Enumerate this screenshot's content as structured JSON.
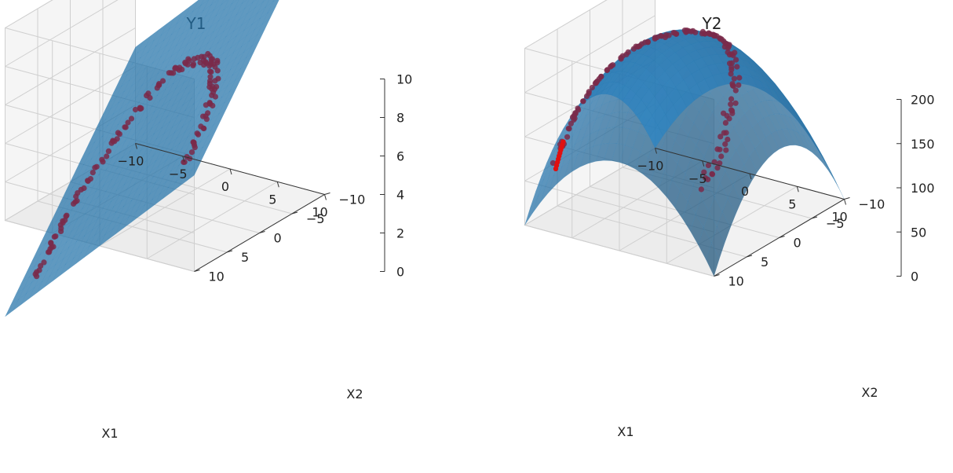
{
  "figure": {
    "colors": {
      "surface": "#1f77b4",
      "points": "#7a2a4a",
      "highlight": "#e01010",
      "pane": "#f2f2f2",
      "grid": "#cfcfcf",
      "axis": "#333333"
    }
  },
  "chart_data": [
    {
      "type": "3d-surface-scatter",
      "title": "Y1",
      "xlabel": "X1",
      "ylabel": "X2",
      "zlabel": "",
      "xlim": [
        -10,
        10
      ],
      "ylim": [
        -10,
        10
      ],
      "zlim": [
        0,
        10
      ],
      "x_ticks": [
        -10,
        -5,
        0,
        5,
        10
      ],
      "y_ticks": [
        -10,
        -5,
        0,
        5,
        10
      ],
      "z_ticks": [
        0,
        2,
        4,
        6,
        8,
        10
      ],
      "grid": true,
      "surface": {
        "form": "plane",
        "z": "0.5*(X1 - X2) + 5",
        "color": "#1f77b4",
        "alpha": 0.7
      },
      "points": {
        "color": "#7a2a4a",
        "label": "",
        "shape": "U-shaped curve in the X1-X2 plane lying on the surface",
        "path": [
          {
            "x1": -8,
            "x2": 8
          },
          {
            "x1": -8,
            "x2": 5
          },
          {
            "x1": -7.5,
            "x2": 2
          },
          {
            "x1": -6,
            "x2": -1
          },
          {
            "x1": -4,
            "x2": -3
          },
          {
            "x1": -1,
            "x2": -4
          },
          {
            "x1": 2,
            "x2": -3
          },
          {
            "x1": 4.5,
            "x2": -1
          },
          {
            "x1": 6.5,
            "x2": 2
          },
          {
            "x1": 7.5,
            "x2": 5
          },
          {
            "x1": 7.5,
            "x2": 8
          }
        ]
      }
    },
    {
      "type": "3d-surface-scatter",
      "title": "Y2",
      "xlabel": "X1",
      "ylabel": "X2",
      "zlabel": "",
      "xlim": [
        -10,
        10
      ],
      "ylim": [
        -10,
        10
      ],
      "zlim": [
        0,
        200
      ],
      "x_ticks": [
        -10,
        -5,
        0,
        5,
        10
      ],
      "y_ticks": [
        -10,
        -5,
        0,
        5,
        10
      ],
      "z_ticks": [
        0,
        50,
        100,
        150,
        200
      ],
      "grid": true,
      "surface": {
        "form": "paraboloid",
        "z": "200 - X1^2 - X2^2",
        "color": "#1f77b4",
        "alpha": 0.7
      },
      "points": {
        "color": "#7a2a4a",
        "highlight_color": "#e01010",
        "label": "",
        "shape": "U-shaped curve in the X1-X2 plane lying on the surface",
        "path": [
          {
            "x1": -8,
            "x2": 8
          },
          {
            "x1": -8,
            "x2": 5
          },
          {
            "x1": -7.5,
            "x2": 2
          },
          {
            "x1": -6,
            "x2": -1
          },
          {
            "x1": -4,
            "x2": -3
          },
          {
            "x1": -1,
            "x2": -4
          },
          {
            "x1": 2,
            "x2": -3
          },
          {
            "x1": 4.5,
            "x2": -1
          },
          {
            "x1": 6.5,
            "x2": 2
          },
          {
            "x1": 7.5,
            "x2": 5
          },
          {
            "x1": 7.5,
            "x2": 8
          }
        ]
      }
    }
  ]
}
